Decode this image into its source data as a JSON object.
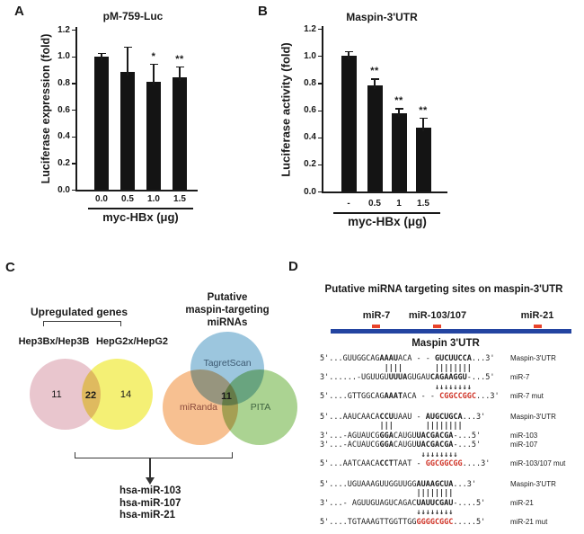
{
  "chart_data": [
    {
      "panel": "A",
      "type": "bar",
      "title": "pM-759-Luc",
      "ylabel": "Luciferase expression (fold)",
      "xlabel": "myc-HBx (μg)",
      "categories": [
        "0.0",
        "0.5",
        "1.0",
        "1.5"
      ],
      "values": [
        1.0,
        0.88,
        0.81,
        0.84
      ],
      "errors": [
        0.02,
        0.19,
        0.13,
        0.08
      ],
      "significance": [
        "",
        "",
        "*",
        "**"
      ],
      "yticks": [
        "0.0",
        "0.2",
        "0.4",
        "0.6",
        "0.8",
        "1.0",
        "1.2"
      ],
      "ylim": [
        0,
        1.2
      ],
      "grid": false,
      "bar_color": "#141414"
    },
    {
      "panel": "B",
      "type": "bar",
      "title": "Maspin-3'UTR",
      "ylabel": "Luciferase activity (fold)",
      "xlabel": "myc-HBx (μg)",
      "categories": [
        "-",
        "0.5",
        "1",
        "1.5"
      ],
      "values": [
        1.0,
        0.78,
        0.58,
        0.47
      ],
      "errors": [
        0.03,
        0.05,
        0.03,
        0.07
      ],
      "significance": [
        "",
        "**",
        "**",
        "**"
      ],
      "yticks": [
        "0.0",
        "0.2",
        "0.4",
        "0.6",
        "0.8",
        "1.0",
        "1.2"
      ],
      "ylim": [
        0,
        1.2
      ],
      "grid": false,
      "bar_color": "#141414"
    }
  ],
  "panels": {
    "A": {
      "label": "A"
    },
    "B": {
      "label": "B"
    },
    "C": {
      "label": "C",
      "upregulated": {
        "header": "Upregulated genes",
        "set1_label": "Hep3Bx/Hep3B",
        "set2_label": "HepG2x/HepG2",
        "set1_count": "11",
        "overlap_count": "22",
        "set2_count": "14",
        "set1_color": "#e9c6ce",
        "set2_color": "#f4f075"
      },
      "mirna_venn": {
        "title_line1": "Putative",
        "title_line2": "maspin-targeting",
        "title_line3": "miRNAs",
        "set1_label": "TagretScan",
        "set2_label": "miRanda",
        "set3_label": "PITA",
        "overlap_count": "11",
        "set1_color": "#9cc6de",
        "set2_color": "#f7c091",
        "set3_color": "#abd392",
        "set1_label_color": "#3d5a72",
        "set2_label_color": "#8a4a3c",
        "set3_label_color": "#3f6440"
      },
      "result_mirnas": [
        "hsa-miR-103",
        "hsa-miR-107",
        "hsa-miR-21"
      ]
    },
    "D": {
      "label": "D",
      "title": "Putative miRNA targeting sites on maspin-3'UTR",
      "sites": [
        "miR-7",
        "miR-103/107",
        "miR-21"
      ],
      "marker_color": "#e8432b",
      "utr_bar_color": "#2344a1",
      "utr_label": "Maspin 3'UTR",
      "mutant_color": "#cf3226",
      "alignments": [
        {
          "rows": [
            {
              "kind": "seq",
              "label": "Maspin-3'UTR",
              "segs": [
                [
                  "5'...GUUGGCAG",
                  ""
                ],
                [
                  "AAAU",
                  "b"
                ],
                [
                  "ACA - - ",
                  ""
                ],
                [
                  "GUCUUCCA",
                  "b"
                ],
                [
                  "...3'",
                  ""
                ]
              ]
            },
            {
              "kind": "marks",
              "segs": [
                [
                  "              ",
                  ""
                ],
                [
                  "||||",
                  "b"
                ],
                [
                  "       ",
                  ""
                ],
                [
                  "||||||||",
                  "b"
                ]
              ]
            },
            {
              "kind": "seq",
              "label": "miR-7",
              "segs": [
                [
                  "3'......-UGUUGU",
                  ""
                ],
                [
                  "UUUA",
                  "b"
                ],
                [
                  "GUGAU",
                  ""
                ],
                [
                  "CAGAAGGU",
                  "b"
                ],
                [
                  "-...5'",
                  ""
                ]
              ]
            },
            {
              "kind": "marks",
              "segs": [
                [
                  "                         ",
                  ""
                ],
                [
                  "↓↓↓↓↓↓↓↓",
                  "a"
                ]
              ]
            },
            {
              "kind": "seq",
              "label": "miR-7 mut",
              "segs": [
                [
                  "5'....GTTGGCAG",
                  ""
                ],
                [
                  "AAAT",
                  "b"
                ],
                [
                  "ACA - - ",
                  ""
                ],
                [
                  "CGGCCGGC",
                  "r"
                ],
                [
                  "...3'",
                  ""
                ]
              ]
            }
          ]
        },
        {
          "rows": [
            {
              "kind": "seq",
              "label": "Maspin-3'UTR",
              "segs": [
                [
                  "5'...AAUCAACA",
                  ""
                ],
                [
                  "CCU",
                  "b"
                ],
                [
                  "UAAU - ",
                  ""
                ],
                [
                  "AUGCUGCA",
                  "b"
                ],
                [
                  "...3'",
                  ""
                ]
              ]
            },
            {
              "kind": "marks",
              "segs": [
                [
                  "             ",
                  ""
                ],
                [
                  "|||",
                  "b"
                ],
                [
                  "       ",
                  ""
                ],
                [
                  "||||||||",
                  "b"
                ]
              ]
            },
            {
              "kind": "seq",
              "label": "miR-103",
              "segs": [
                [
                  "3'...-AGUAUCG",
                  ""
                ],
                [
                  "GGA",
                  "b"
                ],
                [
                  "CAUGU",
                  ""
                ],
                [
                  "UACGACGA",
                  "b"
                ],
                [
                  "-...5'",
                  ""
                ]
              ]
            },
            {
              "kind": "seq",
              "label": "miR-107",
              "segs": [
                [
                  "3'...-ACUAUCG",
                  ""
                ],
                [
                  "GGA",
                  "b"
                ],
                [
                  "CAUGU",
                  ""
                ],
                [
                  "UACGACGA",
                  "b"
                ],
                [
                  "-...5'",
                  ""
                ]
              ]
            },
            {
              "kind": "marks",
              "segs": [
                [
                  "                      ",
                  ""
                ],
                [
                  "↓↓↓↓↓↓↓↓",
                  "a"
                ]
              ]
            },
            {
              "kind": "seq",
              "label": "miR-103/107 mut",
              "segs": [
                [
                  "5'...AATCAACA",
                  ""
                ],
                [
                  "CCT",
                  "b"
                ],
                [
                  "TAAT - ",
                  ""
                ],
                [
                  "GGCGGCGG",
                  "r"
                ],
                [
                  "....3'",
                  ""
                ]
              ]
            }
          ]
        },
        {
          "rows": [
            {
              "kind": "seq",
              "label": "Maspin-3'UTR",
              "segs": [
                [
                  "5'....UGUAAAGUUGGUUGG",
                  ""
                ],
                [
                  "AUAAGCUA",
                  "b"
                ],
                [
                  "...3'",
                  ""
                ]
              ]
            },
            {
              "kind": "marks",
              "segs": [
                [
                  "                     ",
                  ""
                ],
                [
                  "||||||||",
                  "b"
                ]
              ]
            },
            {
              "kind": "seq",
              "label": "miR-21",
              "segs": [
                [
                  "3'...- AGUUGUAGUCAGAC",
                  ""
                ],
                [
                  "UAUUCGAU",
                  "b"
                ],
                [
                  "-....5'",
                  ""
                ]
              ]
            },
            {
              "kind": "marks",
              "segs": [
                [
                  "                     ",
                  ""
                ],
                [
                  "↓↓↓↓↓↓↓↓",
                  "a"
                ]
              ]
            },
            {
              "kind": "seq",
              "label": "miR-21 mut",
              "segs": [
                [
                  "5'....TGTAAAGTTGGTTGG",
                  ""
                ],
                [
                  "GGGGCGGC",
                  "r"
                ],
                [
                  ".....5'",
                  ""
                ]
              ]
            }
          ]
        }
      ]
    }
  }
}
